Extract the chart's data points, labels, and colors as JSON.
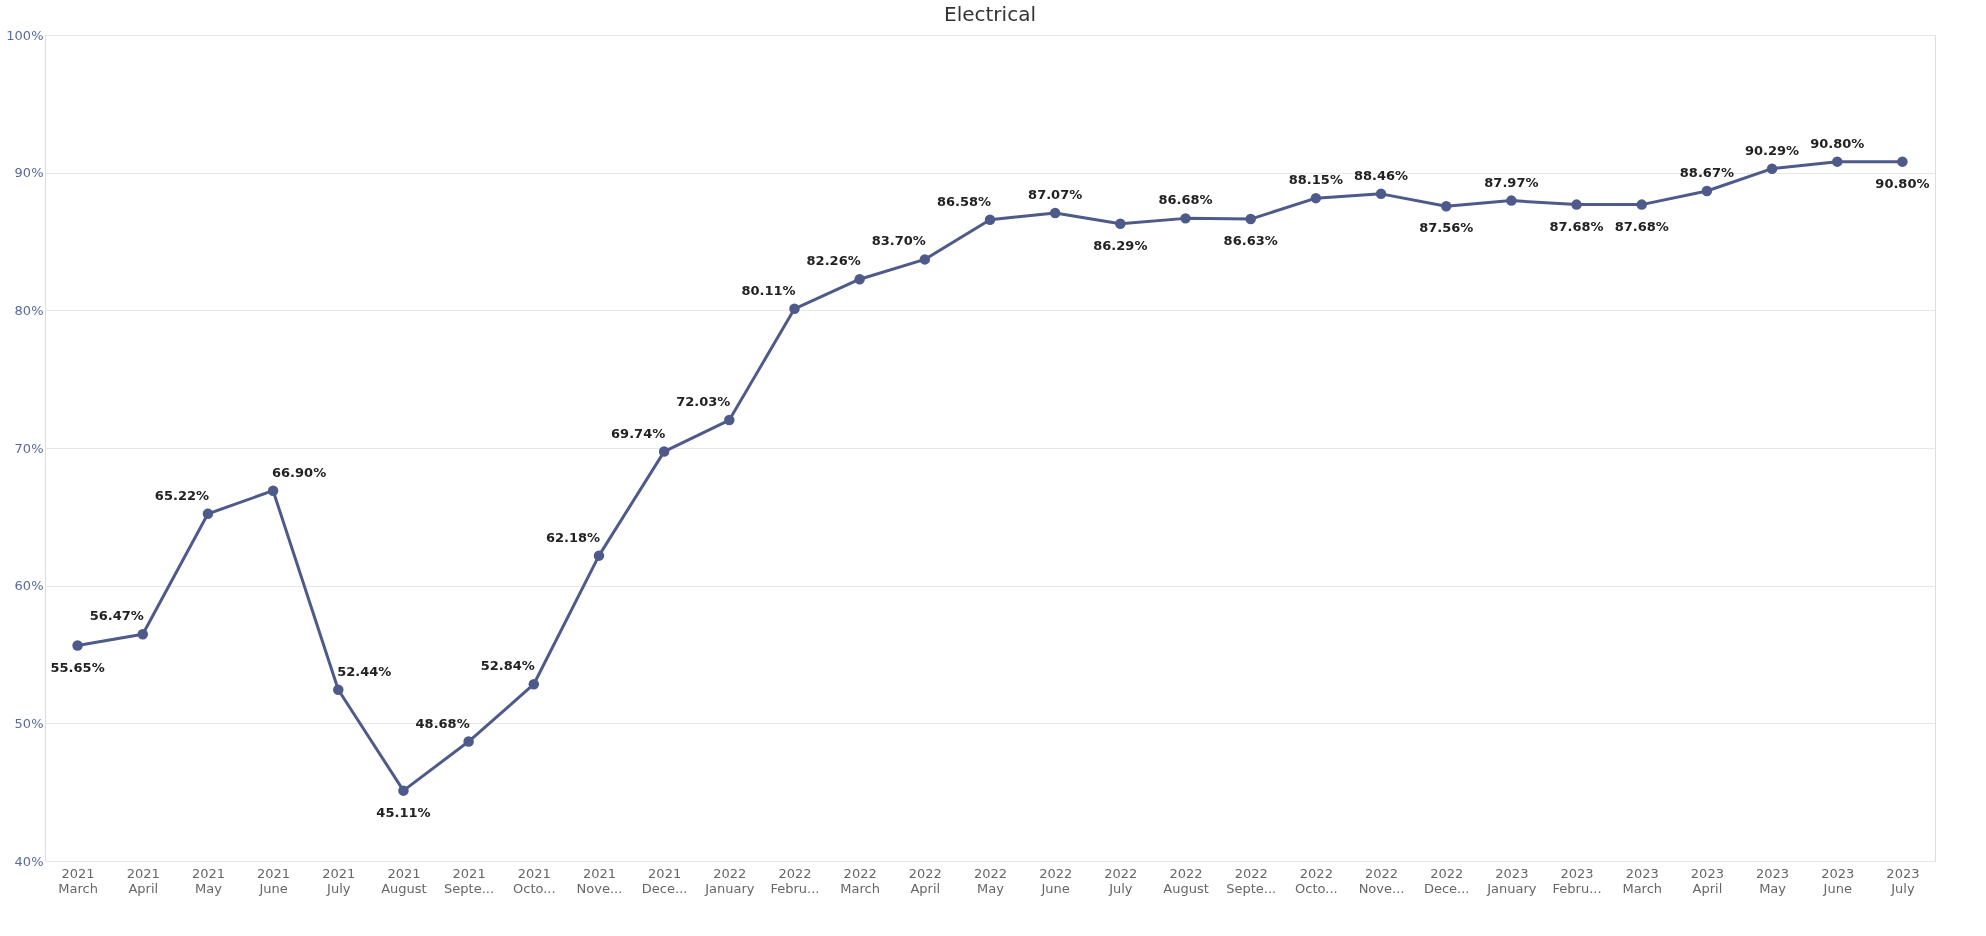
{
  "chart_data": {
    "type": "line",
    "title": "Electrical",
    "categories": [
      "2021 March",
      "2021 April",
      "2021 May",
      "2021 June",
      "2021 July",
      "2021 August",
      "2021 Septe...",
      "2021 Octo...",
      "2021 Nove...",
      "2021 Dece...",
      "2022 January",
      "2022 Febru...",
      "2022 March",
      "2022 April",
      "2022 May",
      "2022 June",
      "2022 July",
      "2022 August",
      "2022 Septe...",
      "2022 Octo...",
      "2022 Nove...",
      "2022 Dece...",
      "2023 January",
      "2023 Febru...",
      "2023 March",
      "2023 April",
      "2023 May",
      "2023 June",
      "2023 July"
    ],
    "series": [
      {
        "color": "#4e5a8a",
        "values": [
          55.65,
          56.47,
          65.22,
          66.9,
          52.44,
          45.11,
          48.68,
          52.84,
          62.18,
          69.74,
          72.03,
          80.11,
          82.26,
          83.7,
          86.58,
          87.07,
          86.29,
          86.68,
          86.63,
          88.15,
          88.46,
          87.56,
          87.97,
          87.68,
          87.68,
          88.67,
          90.29,
          90.8,
          90.8
        ],
        "value_labels": [
          "55.65%",
          "56.47%",
          "65.22%",
          "66.90%",
          "52.44%",
          "45.11%",
          "48.68%",
          "52.84%",
          "62.18%",
          "69.74%",
          "72.03%",
          "80.11%",
          "82.26%",
          "83.70%",
          "86.58%",
          "87.07%",
          "86.29%",
          "86.68%",
          "86.63%",
          "88.15%",
          "88.46%",
          "87.56%",
          "87.97%",
          "87.68%",
          "87.68%",
          "88.67%",
          "90.29%",
          "90.80%",
          "90.80%"
        ]
      }
    ],
    "ylim": [
      40,
      100
    ],
    "yticks": [
      {
        "value": 40,
        "label": "40%"
      },
      {
        "value": 50,
        "label": "50%"
      },
      {
        "value": 60,
        "label": "60%"
      },
      {
        "value": 70,
        "label": "70%"
      },
      {
        "value": 80,
        "label": "80%"
      },
      {
        "value": 90,
        "label": "90%"
      },
      {
        "value": 100,
        "label": "100%"
      }
    ],
    "grid": "y",
    "marker": "circle",
    "line_style": "solid"
  }
}
